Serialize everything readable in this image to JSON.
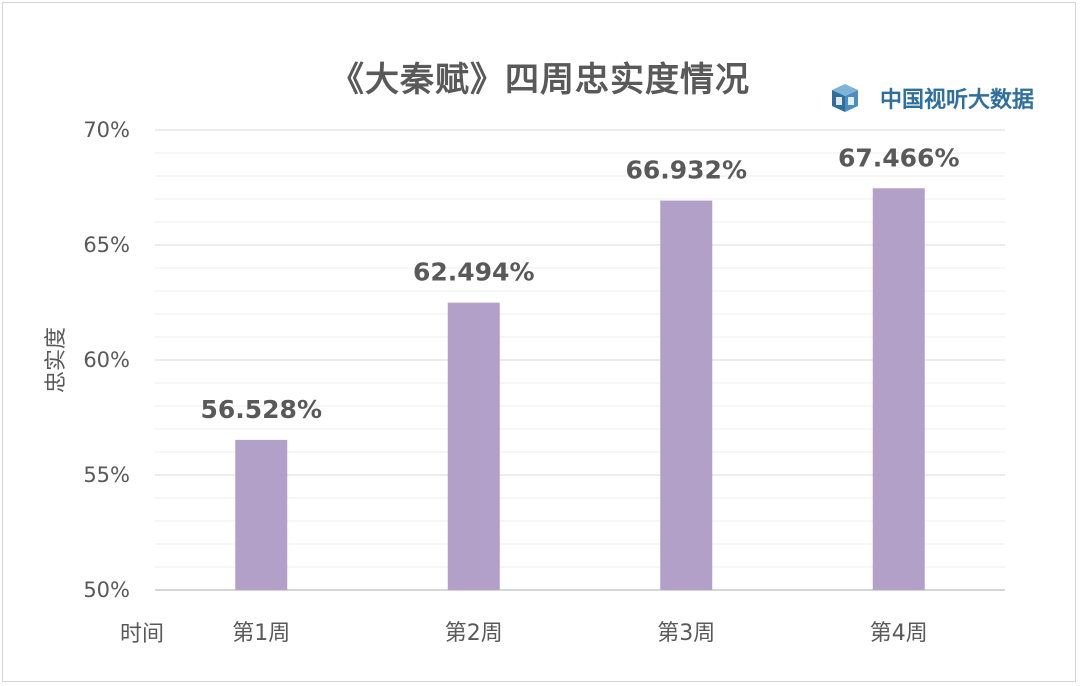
{
  "logo": {
    "icon": "cube-icon",
    "text": "中国视听大数据"
  },
  "chart_data": {
    "type": "bar",
    "title": "《大秦赋》四周忠实度情况",
    "xlabel": "时间",
    "ylabel": "忠实度",
    "categories": [
      "第1周",
      "第2周",
      "第3周",
      "第4周"
    ],
    "values": [
      56.528,
      62.494,
      66.932,
      67.466
    ],
    "data_labels": [
      "56.528%",
      "62.494%",
      "66.932%",
      "67.466%"
    ],
    "ylim": [
      50,
      70
    ],
    "yticks": [
      50,
      55,
      60,
      65,
      70
    ],
    "ytick_labels": [
      "50%",
      "55%",
      "60%",
      "65%",
      "70%"
    ],
    "grid": true,
    "legend": "none",
    "bar_color": "#b2a0c8"
  }
}
